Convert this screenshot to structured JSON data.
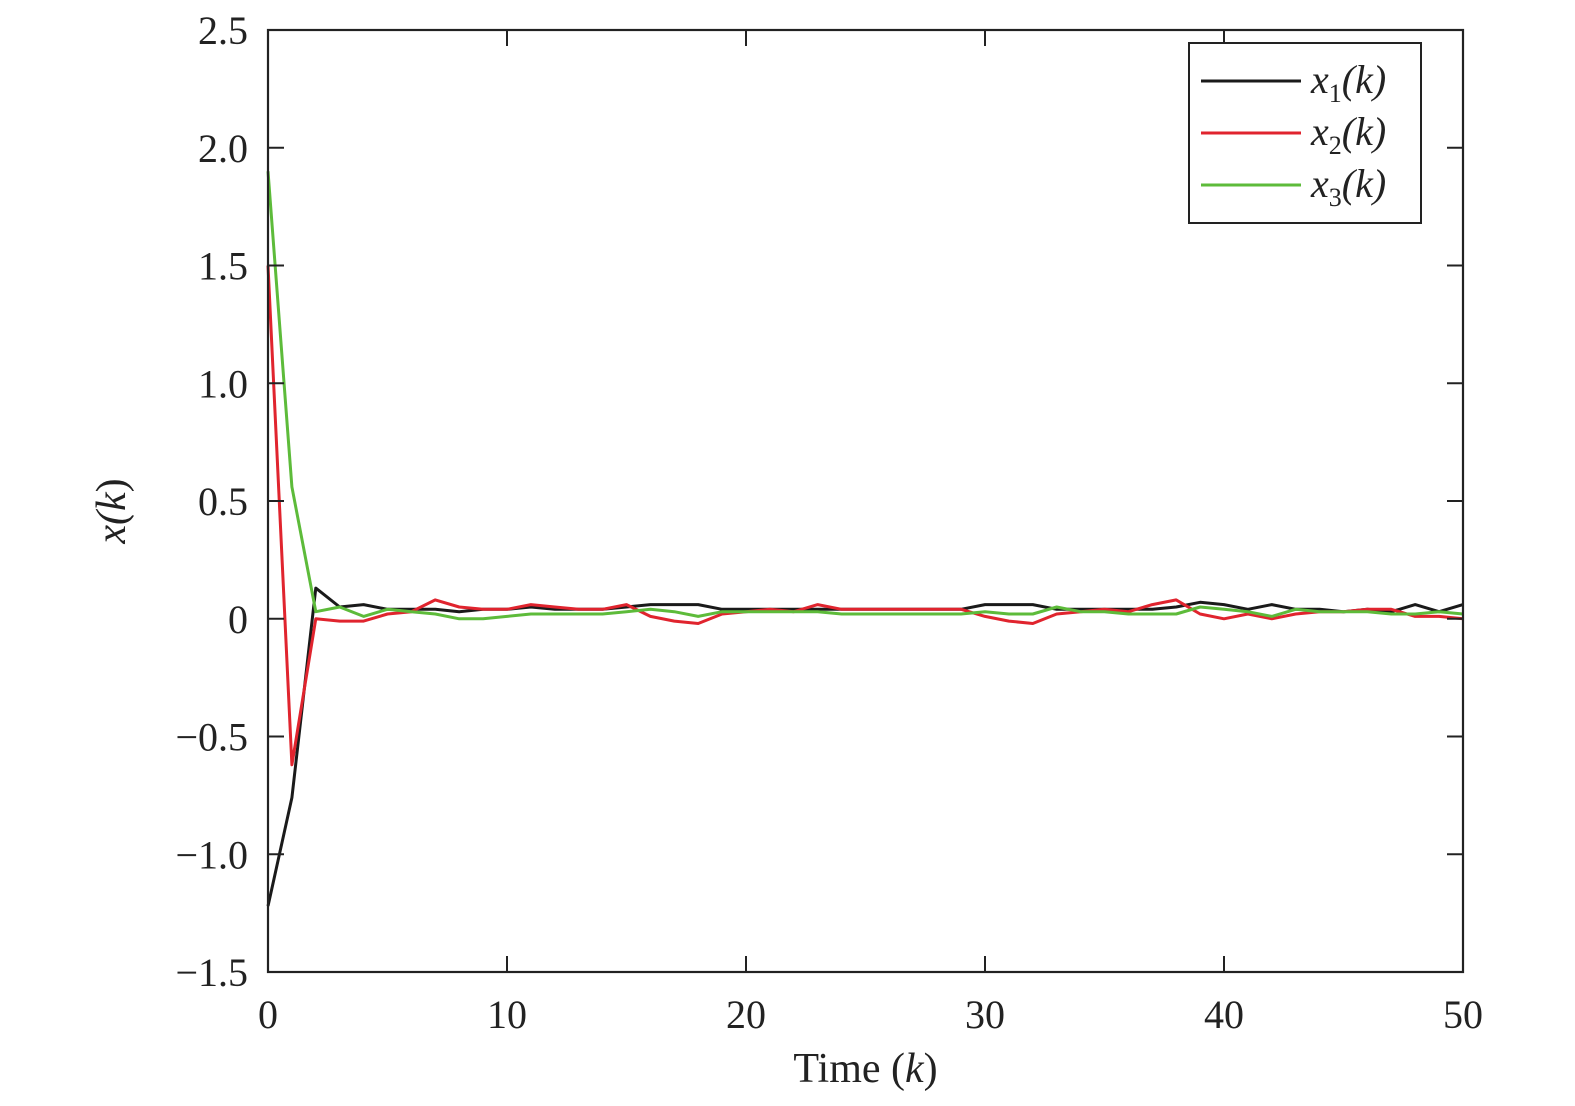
{
  "chart_data": {
    "type": "line",
    "title": "",
    "xlabel": {
      "prefix": "Time (",
      "var": "k",
      "suffix": ")"
    },
    "ylabel": {
      "prefix": "x(",
      "var": "k",
      "suffix": ")"
    },
    "xlim": [
      0,
      50
    ],
    "ylim": [
      -1.5,
      2.5
    ],
    "xticks": [
      0,
      10,
      20,
      30,
      40,
      50
    ],
    "xtick_labels": [
      "0",
      "10",
      "20",
      "30",
      "40",
      "50"
    ],
    "yticks": [
      -1.5,
      -1.0,
      -0.5,
      0,
      0.5,
      1.0,
      1.5,
      2.0,
      2.5
    ],
    "ytick_labels": [
      "−1.5",
      "−1.0",
      "−0.5",
      "0",
      "0.5",
      "1.0",
      "1.5",
      "2.0",
      "2.5"
    ],
    "grid": false,
    "legend_position": "top-right",
    "x": [
      0,
      1,
      2,
      3,
      4,
      5,
      6,
      7,
      8,
      9,
      10,
      11,
      12,
      13,
      14,
      15,
      16,
      17,
      18,
      19,
      20,
      21,
      22,
      23,
      24,
      25,
      26,
      27,
      28,
      29,
      30,
      31,
      32,
      33,
      34,
      35,
      36,
      37,
      38,
      39,
      40,
      41,
      42,
      43,
      44,
      45,
      46,
      47,
      48,
      49,
      50
    ],
    "series": [
      {
        "name": "x1(k)",
        "legend": {
          "base": "x",
          "sub": "1",
          "suffix": "(k)"
        },
        "color": "#1a1a1a",
        "values": [
          -1.22,
          -0.76,
          0.13,
          0.05,
          0.06,
          0.04,
          0.04,
          0.04,
          0.03,
          0.04,
          0.04,
          0.05,
          0.04,
          0.04,
          0.04,
          0.05,
          0.06,
          0.06,
          0.06,
          0.04,
          0.04,
          0.04,
          0.04,
          0.04,
          0.04,
          0.04,
          0.04,
          0.04,
          0.04,
          0.04,
          0.06,
          0.06,
          0.06,
          0.04,
          0.04,
          0.04,
          0.04,
          0.04,
          0.05,
          0.07,
          0.06,
          0.04,
          0.06,
          0.04,
          0.04,
          0.03,
          0.04,
          0.03,
          0.06,
          0.03,
          0.06
        ]
      },
      {
        "name": "x2(k)",
        "legend": {
          "base": "x",
          "sub": "2",
          "suffix": "(k)"
        },
        "color": "#e0242e",
        "values": [
          1.5,
          -0.62,
          0.0,
          -0.01,
          -0.01,
          0.02,
          0.03,
          0.08,
          0.05,
          0.04,
          0.04,
          0.06,
          0.05,
          0.04,
          0.04,
          0.06,
          0.01,
          -0.01,
          -0.02,
          0.02,
          0.03,
          0.04,
          0.03,
          0.06,
          0.04,
          0.04,
          0.04,
          0.04,
          0.04,
          0.04,
          0.01,
          -0.01,
          -0.02,
          0.02,
          0.03,
          0.04,
          0.03,
          0.06,
          0.08,
          0.02,
          0.0,
          0.02,
          0.0,
          0.02,
          0.03,
          0.03,
          0.04,
          0.04,
          0.01,
          0.01,
          0.0
        ]
      },
      {
        "name": "x3(k)",
        "legend": {
          "base": "x",
          "sub": "3",
          "suffix": "(k)"
        },
        "color": "#5dbb3a",
        "values": [
          1.9,
          0.56,
          0.03,
          0.05,
          0.01,
          0.04,
          0.03,
          0.02,
          0.0,
          0.0,
          0.01,
          0.02,
          0.02,
          0.02,
          0.02,
          0.03,
          0.04,
          0.03,
          0.01,
          0.03,
          0.03,
          0.03,
          0.03,
          0.03,
          0.02,
          0.02,
          0.02,
          0.02,
          0.02,
          0.02,
          0.03,
          0.02,
          0.02,
          0.05,
          0.03,
          0.03,
          0.02,
          0.02,
          0.02,
          0.05,
          0.04,
          0.03,
          0.01,
          0.04,
          0.03,
          0.03,
          0.03,
          0.02,
          0.02,
          0.03,
          0.02
        ]
      }
    ]
  }
}
